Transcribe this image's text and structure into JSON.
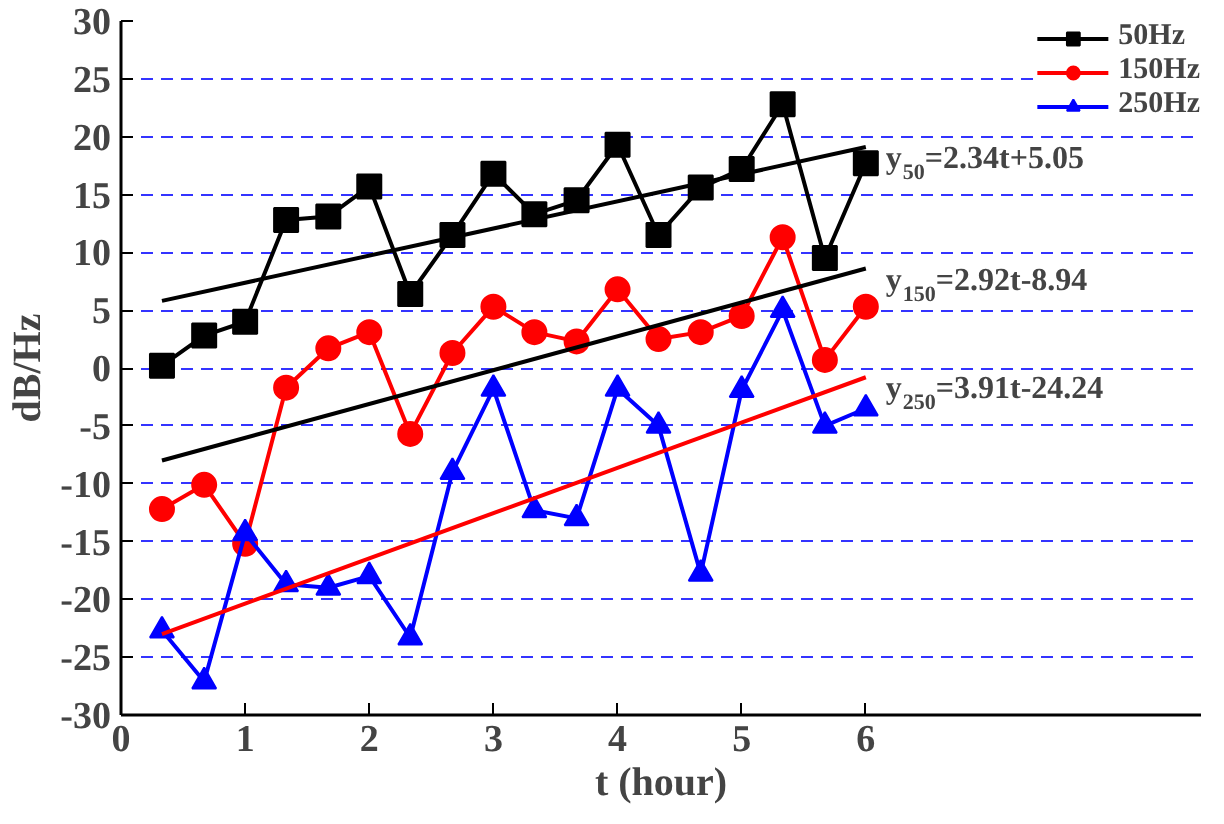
{
  "chart_data": {
    "type": "line",
    "xlabel": "t (hour)",
    "ylabel": "dB/Hz",
    "x": [
      0.33,
      0.67,
      1,
      1.33,
      1.67,
      2,
      2.33,
      2.67,
      3,
      3.33,
      3.67,
      4,
      4.33,
      4.67,
      5,
      5.33,
      5.67,
      6
    ],
    "series": [
      {
        "name": "50Hz",
        "color": "#000000",
        "marker": "square",
        "values": [
          0.2,
          2.8,
          4,
          12.8,
          13.1,
          15.7,
          6.4,
          11.5,
          16.8,
          13.3,
          14.5,
          19.3,
          11.5,
          15.6,
          17.2,
          22.8,
          9.5,
          17.7
        ]
      },
      {
        "name": "150Hz",
        "color": "#ff0000",
        "marker": "circle",
        "values": [
          -12.2,
          -10.1,
          -15.2,
          -1.7,
          1.7,
          3.1,
          -5.7,
          1.3,
          5.3,
          3.1,
          2.3,
          6.8,
          2.5,
          3.1,
          4.5,
          11.3,
          0.7,
          5.3
        ]
      },
      {
        "name": "250Hz",
        "color": "#0000ff",
        "marker": "triangle",
        "values": [
          -22.7,
          -27.1,
          -14.3,
          -18.7,
          -19,
          -18,
          -23.3,
          -9,
          -1.8,
          -12.3,
          -13,
          -1.8,
          -5,
          -17.8,
          -1.9,
          5,
          -5,
          -3.5
        ]
      },
      {
        "color": "#000000",
        "marker": "none",
        "values": [
          5.8,
          null,
          null,
          null,
          null,
          null,
          null,
          null,
          null,
          null,
          null,
          null,
          null,
          null,
          null,
          null,
          null,
          19.1
        ]
      },
      {
        "color": "#000000",
        "marker": "none",
        "values": [
          -8.0,
          null,
          null,
          null,
          null,
          null,
          null,
          null,
          null,
          null,
          null,
          null,
          null,
          null,
          null,
          null,
          null,
          8.6
        ]
      },
      {
        "color": "#ff0000",
        "marker": "none",
        "values": [
          -23.0,
          null,
          null,
          null,
          null,
          null,
          null,
          null,
          null,
          null,
          null,
          null,
          null,
          null,
          null,
          null,
          null,
          -0.8
        ]
      }
    ],
    "xlim": [
      0,
      8.7
    ],
    "xticks": [
      0,
      1,
      2,
      3,
      4,
      5,
      6
    ],
    "ylim": [
      -30,
      30
    ],
    "yticks": [
      -30,
      -25,
      -20,
      -15,
      -10,
      -5,
      0,
      5,
      10,
      15,
      20,
      25,
      30
    ],
    "grid": "y",
    "legend": "top right",
    "line_style": "solid",
    "annotations": [
      "y$_{50}$=2.34t+5.05",
      "y$_{150}$=2.92t-8.94",
      "y$_{250}$=3.91t-24.24"
    ]
  }
}
